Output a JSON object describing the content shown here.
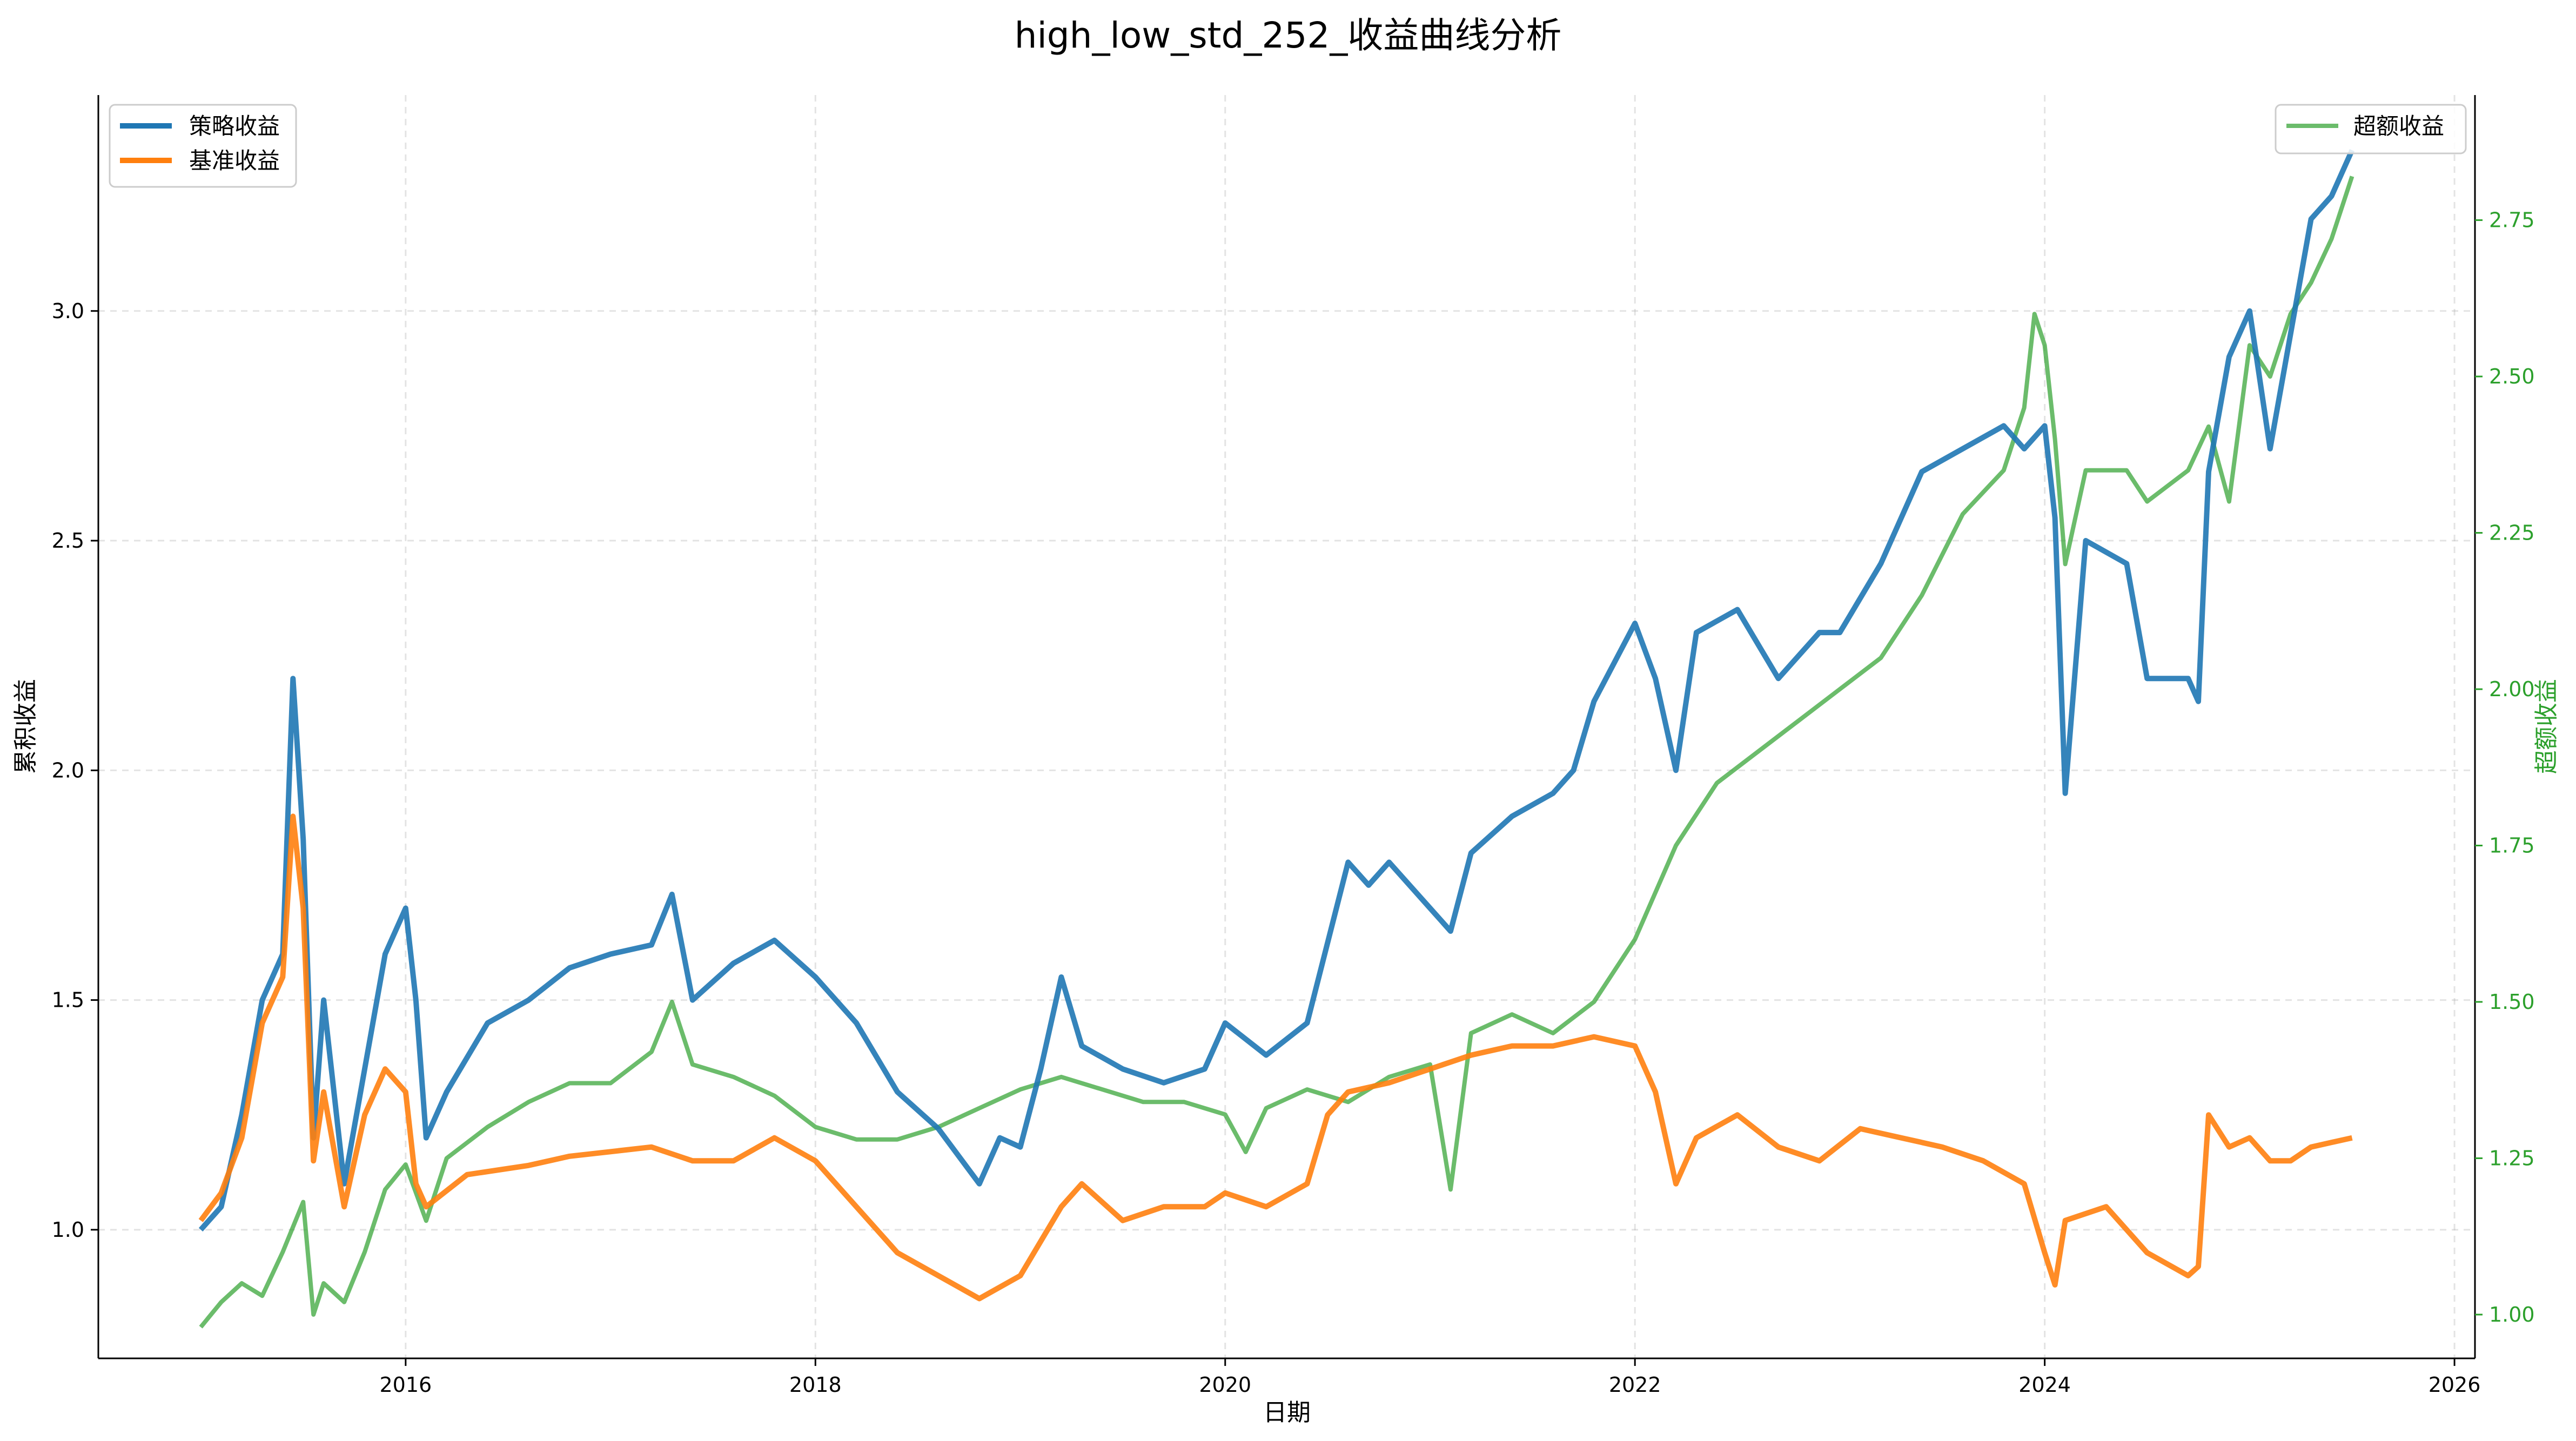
{
  "chart_data": {
    "type": "line",
    "title": "high_low_std_252_收益曲线分析",
    "xlabel": "日期",
    "ylabel": "累积收益",
    "y2label": "超额收益",
    "x_ticks": [
      "2016",
      "2018",
      "2020",
      "2022",
      "2024",
      "2026"
    ],
    "x_range": [
      2014.5,
      2026.1
    ],
    "y_ticks": [
      "1.0",
      "1.5",
      "2.0",
      "2.5",
      "3.0"
    ],
    "y_range": [
      0.72,
      3.47
    ],
    "y2_ticks": [
      "1.00",
      "1.25",
      "1.50",
      "1.75",
      "2.00",
      "2.25",
      "2.50",
      "2.75"
    ],
    "y2_range": [
      0.93,
      2.95
    ],
    "grid": true,
    "legend_left": "top-left",
    "legend_right": "top-right",
    "series": [
      {
        "name": "策略收益",
        "axis": "left",
        "color": "#1f77b4",
        "x": [
          2015.0,
          2015.1,
          2015.2,
          2015.3,
          2015.4,
          2015.45,
          2015.5,
          2015.55,
          2015.6,
          2015.7,
          2015.8,
          2015.9,
          2016.0,
          2016.05,
          2016.1,
          2016.2,
          2016.4,
          2016.6,
          2016.8,
          2017.0,
          2017.2,
          2017.3,
          2017.4,
          2017.6,
          2017.8,
          2018.0,
          2018.2,
          2018.4,
          2018.6,
          2018.8,
          2018.9,
          2019.0,
          2019.1,
          2019.2,
          2019.3,
          2019.5,
          2019.7,
          2019.9,
          2020.0,
          2020.2,
          2020.4,
          2020.6,
          2020.7,
          2020.8,
          2021.0,
          2021.1,
          2021.2,
          2021.4,
          2021.6,
          2021.7,
          2021.8,
          2022.0,
          2022.1,
          2022.2,
          2022.3,
          2022.5,
          2022.7,
          2022.9,
          2023.0,
          2023.2,
          2023.4,
          2023.6,
          2023.8,
          2023.9,
          2024.0,
          2024.05,
          2024.1,
          2024.2,
          2024.4,
          2024.5,
          2024.7,
          2024.75,
          2024.8,
          2024.9,
          2025.0,
          2025.1,
          2025.2,
          2025.3,
          2025.4,
          2025.5
        ],
        "y": [
          1.0,
          1.05,
          1.25,
          1.5,
          1.6,
          2.2,
          1.85,
          1.2,
          1.5,
          1.1,
          1.35,
          1.6,
          1.7,
          1.5,
          1.2,
          1.3,
          1.45,
          1.5,
          1.57,
          1.6,
          1.62,
          1.73,
          1.5,
          1.58,
          1.63,
          1.55,
          1.45,
          1.3,
          1.22,
          1.1,
          1.2,
          1.18,
          1.35,
          1.55,
          1.4,
          1.35,
          1.32,
          1.35,
          1.45,
          1.38,
          1.45,
          1.8,
          1.75,
          1.8,
          1.7,
          1.65,
          1.82,
          1.9,
          1.95,
          2.0,
          2.15,
          2.32,
          2.2,
          2.0,
          2.3,
          2.35,
          2.2,
          2.3,
          2.3,
          2.45,
          2.65,
          2.7,
          2.75,
          2.7,
          2.75,
          2.55,
          1.95,
          2.5,
          2.45,
          2.2,
          2.2,
          2.15,
          2.65,
          2.9,
          3.0,
          2.7,
          2.95,
          3.2,
          3.25,
          3.35
        ]
      },
      {
        "name": "基准收益",
        "axis": "left",
        "color": "#ff7f0e",
        "x": [
          2015.0,
          2015.1,
          2015.2,
          2015.3,
          2015.4,
          2015.45,
          2015.5,
          2015.55,
          2015.6,
          2015.7,
          2015.8,
          2015.9,
          2016.0,
          2016.05,
          2016.1,
          2016.3,
          2016.6,
          2016.8,
          2017.0,
          2017.2,
          2017.4,
          2017.6,
          2017.8,
          2018.0,
          2018.2,
          2018.4,
          2018.6,
          2018.8,
          2019.0,
          2019.2,
          2019.3,
          2019.5,
          2019.7,
          2019.9,
          2020.0,
          2020.2,
          2020.4,
          2020.5,
          2020.6,
          2020.8,
          2021.0,
          2021.2,
          2021.4,
          2021.6,
          2021.8,
          2022.0,
          2022.1,
          2022.2,
          2022.3,
          2022.5,
          2022.7,
          2022.9,
          2023.1,
          2023.3,
          2023.5,
          2023.7,
          2023.9,
          2024.0,
          2024.05,
          2024.1,
          2024.3,
          2024.5,
          2024.7,
          2024.75,
          2024.8,
          2024.9,
          2025.0,
          2025.1,
          2025.2,
          2025.3,
          2025.5
        ],
        "y": [
          1.02,
          1.08,
          1.2,
          1.45,
          1.55,
          1.9,
          1.7,
          1.15,
          1.3,
          1.05,
          1.25,
          1.35,
          1.3,
          1.1,
          1.05,
          1.12,
          1.14,
          1.16,
          1.17,
          1.18,
          1.15,
          1.15,
          1.2,
          1.15,
          1.05,
          0.95,
          0.9,
          0.85,
          0.9,
          1.05,
          1.1,
          1.02,
          1.05,
          1.05,
          1.08,
          1.05,
          1.1,
          1.25,
          1.3,
          1.32,
          1.35,
          1.38,
          1.4,
          1.4,
          1.42,
          1.4,
          1.3,
          1.1,
          1.2,
          1.25,
          1.18,
          1.15,
          1.22,
          1.2,
          1.18,
          1.15,
          1.1,
          0.95,
          0.88,
          1.02,
          1.05,
          0.95,
          0.9,
          0.92,
          1.25,
          1.18,
          1.2,
          1.15,
          1.15,
          1.18,
          1.2
        ]
      },
      {
        "name": "超额收益",
        "axis": "right",
        "color": "#2ca02c",
        "x": [
          2015.0,
          2015.1,
          2015.2,
          2015.3,
          2015.4,
          2015.5,
          2015.55,
          2015.6,
          2015.7,
          2015.8,
          2015.9,
          2016.0,
          2016.1,
          2016.2,
          2016.4,
          2016.6,
          2016.8,
          2017.0,
          2017.2,
          2017.3,
          2017.4,
          2017.6,
          2017.8,
          2018.0,
          2018.2,
          2018.4,
          2018.6,
          2018.8,
          2019.0,
          2019.2,
          2019.4,
          2019.6,
          2019.8,
          2020.0,
          2020.1,
          2020.2,
          2020.4,
          2020.6,
          2020.8,
          2021.0,
          2021.1,
          2021.2,
          2021.4,
          2021.6,
          2021.8,
          2022.0,
          2022.2,
          2022.4,
          2022.6,
          2022.8,
          2023.0,
          2023.2,
          2023.4,
          2023.6,
          2023.8,
          2023.9,
          2023.95,
          2024.0,
          2024.05,
          2024.1,
          2024.2,
          2024.4,
          2024.5,
          2024.7,
          2024.8,
          2024.9,
          2025.0,
          2025.1,
          2025.2,
          2025.3,
          2025.4,
          2025.5
        ],
        "y": [
          0.98,
          1.02,
          1.05,
          1.03,
          1.1,
          1.18,
          1.0,
          1.05,
          1.02,
          1.1,
          1.2,
          1.24,
          1.15,
          1.25,
          1.3,
          1.34,
          1.37,
          1.37,
          1.42,
          1.5,
          1.4,
          1.38,
          1.35,
          1.3,
          1.28,
          1.28,
          1.3,
          1.33,
          1.36,
          1.38,
          1.36,
          1.34,
          1.34,
          1.32,
          1.26,
          1.33,
          1.36,
          1.34,
          1.38,
          1.4,
          1.2,
          1.45,
          1.48,
          1.45,
          1.5,
          1.6,
          1.75,
          1.85,
          1.9,
          1.95,
          2.0,
          2.05,
          2.15,
          2.28,
          2.35,
          2.45,
          2.6,
          2.55,
          2.4,
          2.2,
          2.35,
          2.35,
          2.3,
          2.35,
          2.42,
          2.3,
          2.55,
          2.5,
          2.6,
          2.65,
          2.72,
          2.82
        ]
      }
    ]
  }
}
